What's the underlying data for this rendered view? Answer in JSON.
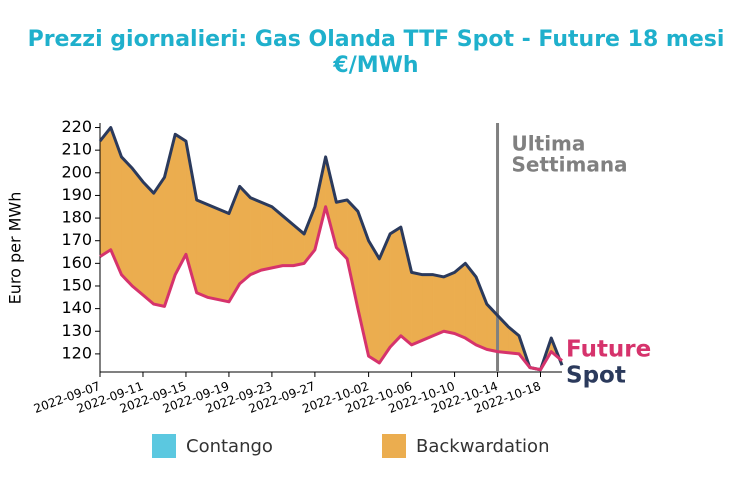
{
  "chart_data": {
    "type": "line",
    "title": "Prezzi giornalieri: Gas Olanda TTF Spot - Future 18 mesi",
    "subtitle": "€/MWh",
    "y_label": "Euro per MWh",
    "x": [
      "2022-09-07",
      "2022-09-08",
      "2022-09-09",
      "2022-09-10",
      "2022-09-11",
      "2022-09-12",
      "2022-09-13",
      "2022-09-14",
      "2022-09-15",
      "2022-09-16",
      "2022-09-17",
      "2022-09-18",
      "2022-09-19",
      "2022-09-20",
      "2022-09-21",
      "2022-09-22",
      "2022-09-23",
      "2022-09-24",
      "2022-09-25",
      "2022-09-26",
      "2022-09-27",
      "2022-09-28",
      "2022-09-29",
      "2022-09-30",
      "2022-10-01",
      "2022-10-02",
      "2022-10-03",
      "2022-10-04",
      "2022-10-05",
      "2022-10-06",
      "2022-10-07",
      "2022-10-08",
      "2022-10-09",
      "2022-10-10",
      "2022-10-11",
      "2022-10-12",
      "2022-10-13",
      "2022-10-14",
      "2022-10-15",
      "2022-10-16",
      "2022-10-17",
      "2022-10-18",
      "2022-10-19",
      "2022-10-20"
    ],
    "series": [
      {
        "name": "Spot",
        "color": "#2b3a5c",
        "values": [
          214,
          220,
          207,
          202,
          196,
          191,
          198,
          217,
          214,
          188,
          186,
          184,
          182,
          194,
          189,
          187,
          185,
          181,
          177,
          173,
          185,
          207,
          187,
          188,
          183,
          170,
          162,
          173,
          176,
          156,
          155,
          155,
          154,
          156,
          160,
          154,
          142,
          137,
          132,
          128,
          114,
          113,
          127,
          115
        ]
      },
      {
        "name": "Future",
        "color": "#d6336c",
        "values": [
          163,
          166,
          155,
          150,
          146,
          142,
          141,
          155,
          164,
          147,
          145,
          144,
          143,
          151,
          155,
          157,
          158,
          159,
          159,
          160,
          166,
          185,
          167,
          162,
          140,
          119,
          116,
          123,
          128,
          124,
          126,
          128,
          130,
          129,
          127,
          124,
          122,
          121,
          120.5,
          120,
          114,
          113,
          121,
          117
        ]
      }
    ],
    "fill_legend": [
      {
        "name": "Contango",
        "color": "#5bc8e0"
      },
      {
        "name": "Backwardation",
        "color": "#ebad4f"
      }
    ],
    "xlim": [
      "2022-09-07",
      "2022-10-20"
    ],
    "xticks": [
      "2022-09-07",
      "2022-09-11",
      "2022-09-15",
      "2022-09-19",
      "2022-09-23",
      "2022-09-27",
      "2022-10-02",
      "2022-10-06",
      "2022-10-10",
      "2022-10-14",
      "2022-10-18"
    ],
    "ylim": [
      112,
      222
    ],
    "yticks": [
      120,
      130,
      140,
      150,
      160,
      170,
      180,
      190,
      200,
      210,
      220
    ],
    "vline": {
      "x": "2022-10-14",
      "color": "#808080",
      "label": [
        "Ultima",
        "Settimana"
      ]
    }
  }
}
